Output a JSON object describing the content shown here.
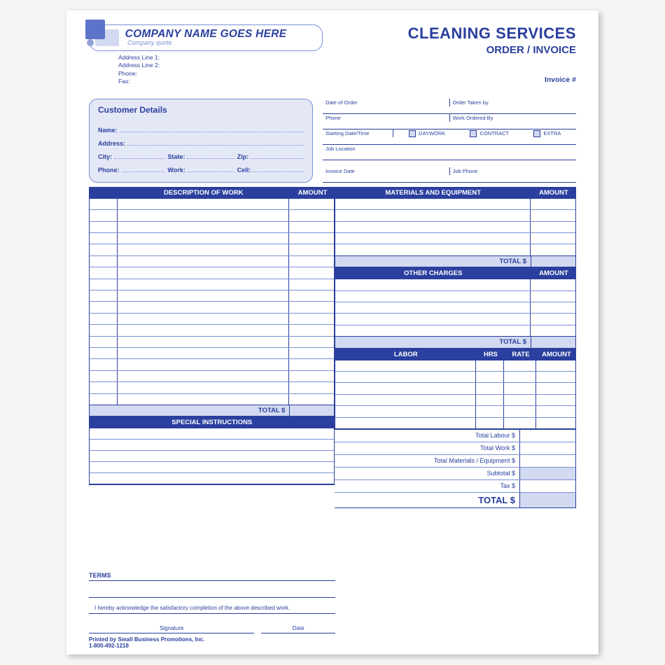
{
  "header": {
    "company_name": "COMPANY NAME GOES HERE",
    "company_quote": "Company quote",
    "addr1_label": "Address Line 1:",
    "addr2_label": "Address Line 2:",
    "phone_label": "Phone:",
    "fax_label": "Fax:",
    "title_main": "CLEANING SERVICES",
    "title_sub": "ORDER / INVOICE",
    "invoice_no_label": "Invoice #"
  },
  "customer": {
    "title": "Customer Details",
    "name": "Name:",
    "address": "Address:",
    "city": "City:",
    "state": "State:",
    "zip": "Zip:",
    "phone": "Phone:",
    "work": "Work:",
    "cell": "Cell:"
  },
  "order": {
    "date_of_order": "Date of Order",
    "order_taken_by": "Order Taken by",
    "phone": "Phone",
    "work_ordered_by": "Work Ordered By",
    "starting": "Starting Date/Time",
    "daywork": "DAYWORK",
    "contract": "CONTRACT",
    "extra": "EXTRA",
    "job_location": "Job Location",
    "invoice_date": "Invoice Date",
    "job_phone": "Job Phone"
  },
  "cols": {
    "desc_of_work": "DESCRIPTION OF WORK",
    "amount": "AMOUNT",
    "materials": "MATERIALS AND EQUIPMENT",
    "other_charges": "OTHER CHARGES",
    "labor": "LABOR",
    "hrs": "HRS",
    "rate": "RATE",
    "special": "SPECIAL INSTRUCTIONS",
    "total_dollar": "TOTAL  $"
  },
  "summary": {
    "total_labour": "Total Labour $",
    "total_work": "Total Work $",
    "total_materials": "Total Materials / Equipment $",
    "subtotal": "Subtotal $",
    "tax": "Tax $",
    "total": "TOTAL $"
  },
  "terms": {
    "label": "TERMS",
    "ack": "I hereby acknowledge the satisfactory completion of the above described work.",
    "signature": "Signature",
    "date": "Date"
  },
  "footer": {
    "printed_by": "Printed by Small Business Promotions, Inc.",
    "phone": "1-800-492-1218"
  },
  "layout": {
    "desc_rows": 18,
    "mat_rows": 5,
    "other_rows": 5,
    "labor_rows": 6,
    "spec_rows": 5,
    "colors": {
      "primary": "#2a3f9e",
      "light": "#d2d9f0",
      "mid": "#7a8fd8",
      "panel": "#e4e8f6"
    }
  }
}
